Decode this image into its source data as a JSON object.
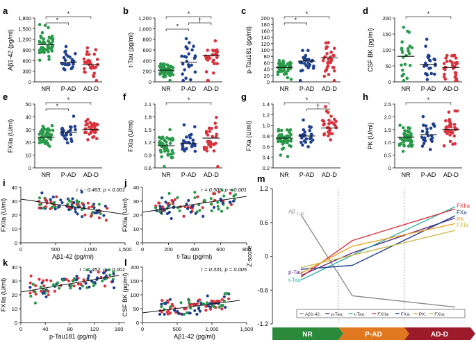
{
  "colors": {
    "green": "#2a9a4a",
    "blue": "#1f3f8f",
    "red": "#d8323c",
    "gray": "#8c8c8c",
    "purple": "#5a2a7a",
    "teal": "#2fb0a8",
    "orange": "#f0a020",
    "olive": "#c8b84a",
    "dark_red": "#9c1a2a",
    "mid_orange": "#e07820",
    "dark_green": "#2a8a3a"
  },
  "chart_data": [
    {
      "panel": "a",
      "type": "scatter",
      "ylabel": "Aβ1-42 (pg/ml)",
      "categories": [
        "NR",
        "P-AD",
        "AD-D"
      ],
      "yticks": [
        "0",
        "300",
        "600",
        "900",
        "1,200",
        "1,500",
        "1,800"
      ],
      "ylim": [
        0,
        1800
      ],
      "means": [
        1050,
        550,
        480
      ],
      "spread": [
        220,
        200,
        190
      ],
      "n": [
        48,
        24,
        30
      ],
      "sig": [
        {
          "from": 0,
          "to": 1,
          "level": 1,
          "mark": "*"
        },
        {
          "from": 0,
          "to": 2,
          "level": 2,
          "mark": "*"
        }
      ]
    },
    {
      "panel": "b",
      "type": "scatter",
      "ylabel": "t-Tau (pg/ml)",
      "categories": [
        "NR",
        "P-AD",
        "AD-D"
      ],
      "yticks": [
        "0",
        "200",
        "400",
        "600",
        "800",
        "1,000",
        "1,200"
      ],
      "ylim": [
        0,
        1200
      ],
      "means": [
        220,
        370,
        500
      ],
      "spread": [
        70,
        200,
        230
      ],
      "n": [
        48,
        24,
        30
      ],
      "sig": [
        {
          "from": 0,
          "to": 1,
          "level": 1,
          "mark": "*"
        },
        {
          "from": 1,
          "to": 2,
          "level": 2,
          "mark": "†"
        },
        {
          "from": 0,
          "to": 2,
          "level": 3,
          "mark": "*"
        }
      ]
    },
    {
      "panel": "c",
      "type": "scatter",
      "ylabel": "p-Tau181 (pg/ml)",
      "categories": [
        "NR",
        "P-AD",
        "AD-D"
      ],
      "yticks": [
        "0",
        "20",
        "40",
        "60",
        "80",
        "100",
        "120",
        "140",
        "160",
        "180",
        "200"
      ],
      "ylim": [
        0,
        200
      ],
      "means": [
        45,
        65,
        75
      ],
      "spread": [
        12,
        25,
        25
      ],
      "n": [
        48,
        24,
        30
      ],
      "sig": [
        {
          "from": 0,
          "to": 1,
          "level": 1,
          "mark": "*"
        },
        {
          "from": 0,
          "to": 2,
          "level": 2,
          "mark": "*"
        }
      ]
    },
    {
      "panel": "d",
      "type": "scatter",
      "ylabel": "CSF BK (pg/ml)",
      "categories": [
        "NR",
        "P-AD",
        "AD-D"
      ],
      "yticks": [
        "0",
        "50",
        "100",
        "150",
        "200"
      ],
      "ylim": [
        0,
        200
      ],
      "means": [
        80,
        55,
        45
      ],
      "spread": [
        38,
        30,
        25
      ],
      "n": [
        22,
        24,
        30
      ],
      "sig": [
        {
          "from": 0,
          "to": 2,
          "level": 1,
          "mark": "*"
        }
      ]
    },
    {
      "panel": "e",
      "type": "scatter",
      "ylabel": "FXIIa (U/ml)",
      "categories": [
        "NR",
        "P-AD",
        "AD-D"
      ],
      "yticks": [
        "0",
        "10",
        "20",
        "30",
        "40",
        "50"
      ],
      "ylim": [
        0,
        50
      ],
      "means": [
        24,
        28,
        30
      ],
      "spread": [
        4,
        4,
        4
      ],
      "n": [
        48,
        24,
        30
      ],
      "sig": [
        {
          "from": 0,
          "to": 1,
          "level": 1,
          "mark": "*"
        },
        {
          "from": 0,
          "to": 2,
          "level": 2,
          "mark": "*"
        }
      ]
    },
    {
      "panel": "f",
      "type": "scatter",
      "ylabel": "FXIa (U/ml)",
      "categories": [
        "NR",
        "P-AD",
        "AD-D"
      ],
      "yticks": [
        "0.6",
        "0.9",
        "1.2",
        "1.5",
        "1.8",
        "2.1"
      ],
      "ylim": [
        0.6,
        2.1
      ],
      "means": [
        1.12,
        1.17,
        1.3
      ],
      "spread": [
        0.18,
        0.18,
        0.22
      ],
      "n": [
        48,
        24,
        30
      ],
      "sig": [
        {
          "from": 0,
          "to": 2,
          "level": 1,
          "mark": "*"
        }
      ]
    },
    {
      "panel": "g",
      "type": "scatter",
      "ylabel": "FXa (U/ml)",
      "categories": [
        "NR",
        "P-AD",
        "AD-D"
      ],
      "yticks": [
        "0.2",
        "0.4",
        "0.6",
        "0.8",
        "1.0",
        "1.2",
        "1.4"
      ],
      "ylim": [
        0.2,
        1.4
      ],
      "means": [
        0.76,
        0.8,
        0.95
      ],
      "spread": [
        0.1,
        0.12,
        0.15
      ],
      "n": [
        48,
        24,
        30
      ],
      "sig": [
        {
          "from": 1,
          "to": 2,
          "level": 1,
          "mark": "†"
        },
        {
          "from": 0,
          "to": 2,
          "level": 2,
          "mark": "*"
        }
      ]
    },
    {
      "panel": "h",
      "type": "scatter",
      "ylabel": "PK (U/ml)",
      "categories": [
        "NR",
        "P-AD",
        "AD-D"
      ],
      "yticks": [
        "0",
        "0.5",
        "1.0",
        "1.5",
        "2.0",
        "2.5"
      ],
      "ylim": [
        0,
        2.5
      ],
      "means": [
        1.2,
        1.3,
        1.5
      ],
      "spread": [
        0.25,
        0.35,
        0.35
      ],
      "n": [
        48,
        24,
        30
      ],
      "sig": [
        {
          "from": 0,
          "to": 2,
          "level": 1,
          "mark": "*"
        }
      ]
    },
    {
      "panel": "i",
      "type": "scatter-regression",
      "xlabel": "Aβ1-42 (pg/ml)",
      "ylabel": "FXIIa (U/ml)",
      "stat": "r = - 0.463, p < 0.001",
      "xticks": [
        "0",
        "500",
        "1,000",
        "1,500"
      ],
      "yticks": [
        "0",
        "10",
        "20",
        "30",
        "40"
      ],
      "xlim": [
        0,
        1500
      ],
      "ylim": [
        0,
        40
      ],
      "fit": [
        [
          0,
          31.5
        ],
        [
          1500,
          20.5
        ]
      ]
    },
    {
      "panel": "j",
      "type": "scatter-regression",
      "xlabel": "t-Tau (pg/ml)",
      "ylabel": "FXIIa (U/ml)",
      "stat": "r = 0.509, p < 0.001",
      "xticks": [
        "0",
        "200",
        "400",
        "600",
        "800"
      ],
      "yticks": [
        "0",
        "10",
        "20",
        "30",
        "40"
      ],
      "xlim": [
        0,
        800
      ],
      "ylim": [
        0,
        40
      ],
      "fit": [
        [
          0,
          22
        ],
        [
          800,
          33.5
        ]
      ]
    },
    {
      "panel": "k",
      "type": "scatter-regression",
      "xlabel": "p-Tau181 (pg/ml)",
      "ylabel": "FXIIa (U/ml)",
      "stat": "r = 0.452, p < 0.001",
      "xticks": [
        "0",
        "40",
        "80",
        "120",
        "160"
      ],
      "yticks": [
        "0",
        "10",
        "20",
        "30",
        "40"
      ],
      "xlim": [
        0,
        170
      ],
      "ylim": [
        0,
        40
      ],
      "fit": [
        [
          0,
          22
        ],
        [
          160,
          34
        ]
      ]
    },
    {
      "panel": "l",
      "type": "scatter-regression",
      "xlabel": "Aβ1-42 (pg/ml)",
      "ylabel": "CSF BK (pg/ml)",
      "stat": "r = 0.331, p = 0.005",
      "xticks": [
        "0",
        "500",
        "1,000",
        "1,500"
      ],
      "yticks": [
        "0",
        "50",
        "100",
        "150",
        "200"
      ],
      "xlim": [
        0,
        1500
      ],
      "ylim": [
        0,
        200
      ],
      "fit": [
        [
          0,
          35
        ],
        [
          1400,
          80
        ]
      ]
    },
    {
      "panel": "m",
      "type": "line",
      "ylabel": "Z-score",
      "categories": [
        "NR",
        "P-AD",
        "AD-D"
      ],
      "yticks": [
        "-1.2",
        "-0.6",
        "0",
        "0.6",
        "1.2"
      ],
      "ylim": [
        -1.2,
        1.2
      ],
      "series": [
        {
          "name": "Aβ1-42",
          "color": "#8c8c8c",
          "values": [
            0.74,
            -0.7,
            -0.9
          ]
        },
        {
          "name": "p-Tau",
          "color": "#5a2a7a",
          "values": [
            -0.34,
            0.06,
            0.68
          ]
        },
        {
          "name": "t-Tau",
          "color": "#2fb0a8",
          "values": [
            -0.42,
            0.02,
            0.88
          ]
        },
        {
          "name": "FXIIa",
          "color": "#d8323c",
          "values": [
            -0.37,
            0.28,
            0.84
          ]
        },
        {
          "name": "FXa",
          "color": "#1f3f8f",
          "values": [
            -0.23,
            -0.16,
            0.72
          ]
        },
        {
          "name": "PK",
          "color": "#f0a020",
          "values": [
            -0.3,
            0.18,
            0.58
          ]
        },
        {
          "name": "FXIa",
          "color": "#c8b84a",
          "values": [
            -0.2,
            0.02,
            0.46
          ]
        }
      ],
      "right_labels": [
        "FXIIa",
        "FXa",
        "PK",
        "FXIa"
      ],
      "left_labels": [
        "Aβ1-42",
        "p-Tau",
        "t-Tau"
      ]
    }
  ],
  "panel_m_legend_text": "—, Aβ1-42; —, p-Tau; —, t-Tau; —, FXIIa; —, FXa; —, PK; —, FXIa",
  "stage_arrows": [
    "NR",
    "P-AD",
    "AD-D"
  ]
}
